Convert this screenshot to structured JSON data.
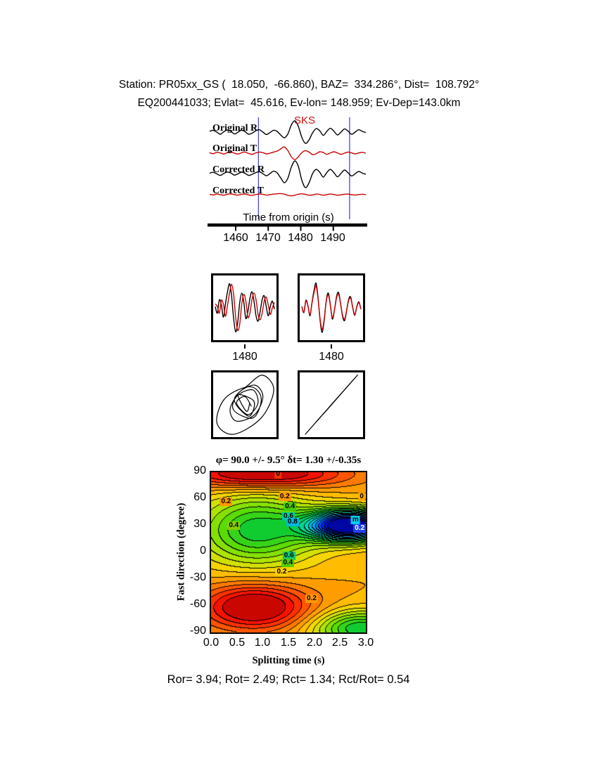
{
  "header": {
    "line1": "Station: PR05xx_GS (  18.050,  -66.860), BAZ=  334.286°, Dist=  108.792°",
    "line2": "EQ200441033; Evlat=  45.616, Ev-lon= 148.959; Ev-Dep=143.0km"
  },
  "footer": {
    "stats": "Ror= 3.94; Rot= 2.49; Rct= 1.34; Rct/Rot= 0.54"
  },
  "chart_data": [
    {
      "id": "waveform-traces",
      "type": "line",
      "xlabel": "Time from origin (s)",
      "x_range": [
        1452,
        1500
      ],
      "xticks": [
        1460,
        1470,
        1480,
        1490
      ],
      "window": [
        1467,
        1495
      ],
      "window_color": "#4a4ad0",
      "phase_label": "SKS",
      "phase_time": 1478,
      "series": [
        {
          "name": "Original R",
          "color": "#000000",
          "values": [
            0.1,
            0.18,
            0.05,
            -0.1,
            0.08,
            0.2,
            0.1,
            -0.08,
            0.05,
            0.18,
            0.08,
            -0.1,
            -0.02,
            0.15,
            0.22,
            0.05,
            -0.12,
            0.02,
            0.18,
            0.1,
            -0.15,
            -0.35,
            -0.1,
            0.55,
            0.85,
            0.45,
            -0.35,
            -0.75,
            -0.5,
            0.0,
            0.3,
            0.15,
            -0.18,
            0.1,
            0.32,
            0.12,
            -0.15,
            0.05,
            0.28,
            0.12,
            -0.1,
            0.05,
            0.22,
            0.1,
            0.02
          ]
        },
        {
          "name": "Original T",
          "color": "#cc0000",
          "values": [
            0.04,
            -0.04,
            0.06,
            0.02,
            -0.06,
            0.04,
            0.08,
            0.0,
            -0.06,
            0.03,
            0.08,
            -0.02,
            -0.08,
            0.02,
            0.08,
            0.04,
            -0.05,
            0.0,
            0.08,
            0.15,
            0.3,
            0.45,
            0.2,
            -0.25,
            -0.45,
            -0.25,
            0.05,
            0.18,
            0.08,
            -0.1,
            -0.04,
            0.1,
            0.05,
            -0.08,
            0.02,
            0.1,
            0.02,
            -0.08,
            0.0,
            0.08,
            0.02,
            -0.05,
            0.02,
            0.06,
            0.0
          ]
        },
        {
          "name": "Corrected R",
          "color": "#000000",
          "values": [
            0.08,
            0.14,
            0.03,
            -0.08,
            0.06,
            0.16,
            0.08,
            -0.06,
            0.04,
            0.15,
            0.06,
            -0.08,
            0.0,
            0.12,
            0.18,
            0.04,
            -0.1,
            0.05,
            0.22,
            0.1,
            -0.25,
            -0.6,
            -0.3,
            0.5,
            0.95,
            0.55,
            -0.45,
            -0.95,
            -0.6,
            0.05,
            0.35,
            0.15,
            -0.2,
            0.12,
            0.35,
            0.12,
            -0.18,
            0.06,
            0.3,
            0.1,
            -0.12,
            0.04,
            0.2,
            0.08,
            0.0
          ]
        },
        {
          "name": "Corrected T",
          "color": "#cc0000",
          "values": [
            0.03,
            -0.02,
            0.04,
            0.0,
            -0.04,
            0.03,
            0.05,
            0.0,
            -0.03,
            0.02,
            0.05,
            -0.02,
            -0.05,
            0.01,
            0.04,
            0.02,
            -0.03,
            0.0,
            0.04,
            0.06,
            0.08,
            0.04,
            -0.05,
            -0.08,
            -0.04,
            0.03,
            0.06,
            0.02,
            -0.04,
            -0.02,
            0.04,
            0.02,
            -0.04,
            0.0,
            0.04,
            0.01,
            -0.04,
            -0.01,
            0.03,
            0.04,
            0.0,
            -0.03,
            0.01,
            0.03,
            0.0
          ]
        }
      ]
    },
    {
      "id": "windowed-pair",
      "type": "line",
      "panels": [
        {
          "tick_label": "1480",
          "series": [
            {
              "color": "#000000",
              "values": [
                0.05,
                -0.2,
                0.3,
                0.1,
                -0.35,
                0.15,
                0.6,
                0.9,
                0.45,
                -0.4,
                -0.9,
                -0.55,
                0.2,
                0.55,
                0.2,
                -0.4,
                -0.15,
                0.35,
                0.6,
                0.25,
                -0.3,
                -0.5,
                -0.15,
                0.3,
                0.45,
                0.05,
                -0.3,
                0.05,
                0.25,
                -0.05
              ]
            },
            {
              "color": "#cc0000",
              "values": [
                0.15,
                0.05,
                -0.2,
                0.28,
                0.12,
                -0.32,
                0.1,
                0.55,
                0.88,
                0.5,
                -0.35,
                -0.85,
                -0.6,
                0.15,
                0.5,
                0.25,
                -0.35,
                -0.2,
                0.3,
                0.55,
                0.3,
                -0.25,
                -0.45,
                -0.2,
                0.25,
                0.4,
                0.1,
                -0.25,
                0.0,
                0.2
              ]
            }
          ]
        },
        {
          "tick_label": "1480",
          "series": [
            {
              "color": "#000000",
              "values": [
                0.05,
                -0.18,
                0.28,
                0.08,
                -0.3,
                0.2,
                0.65,
                0.92,
                0.35,
                -0.5,
                -0.92,
                -0.45,
                0.28,
                0.55,
                0.1,
                -0.42,
                -0.1,
                0.4,
                0.58,
                0.18,
                -0.32,
                -0.48,
                -0.1,
                0.32,
                0.4,
                0.0,
                -0.28,
                0.05,
                0.22,
                -0.05
              ]
            },
            {
              "color": "#cc0000",
              "values": [
                0.04,
                -0.16,
                0.25,
                0.07,
                -0.26,
                0.18,
                0.57,
                0.81,
                0.31,
                -0.44,
                -0.81,
                -0.4,
                0.25,
                0.48,
                0.09,
                -0.37,
                -0.09,
                0.35,
                0.51,
                0.16,
                -0.28,
                -0.42,
                -0.09,
                0.28,
                0.35,
                0.0,
                -0.25,
                0.04,
                0.19,
                -0.04
              ]
            }
          ]
        }
      ]
    },
    {
      "id": "particle-motion",
      "type": "scatter",
      "panels": [
        {
          "source": "windowed-pair.panels.0",
          "x": "T component",
          "y": "R component"
        },
        {
          "source": "windowed-pair.panels.1",
          "x": "T component",
          "y": "R component"
        }
      ]
    },
    {
      "id": "misfit-contour",
      "type": "heatmap",
      "title": "φ= 90.0 +/- 9.5° δt= 1.30 +/-0.35s",
      "xlabel": "Splitting time (s)",
      "ylabel": "Fast direction (degree)",
      "xlim": [
        0,
        3
      ],
      "ylim": [
        -90,
        90
      ],
      "xticks": [
        "0.0",
        "0.5",
        "1.0",
        "1.5",
        "2.0",
        "2.5",
        "3.0"
      ],
      "yticks": [
        "90",
        "60",
        "30",
        "0",
        "-30",
        "-60",
        "-90"
      ],
      "best_fit": {
        "phi_deg": 90.0,
        "phi_err_deg": 9.5,
        "dt_s": 1.3,
        "dt_err_s": 0.35
      },
      "n_levels": 24,
      "field_model": {
        "base": 0.75,
        "gaussians": [
          {
            "x": 1.0,
            "y": 88,
            "sx": 1.6,
            "sy": 16,
            "a": 0.3
          },
          {
            "x": 0.85,
            "y": -62,
            "sx": 1.05,
            "sy": 26,
            "a": 0.3
          },
          {
            "x": 0.9,
            "y": 25,
            "sx": 1.15,
            "sy": 40,
            "a": -0.32
          },
          {
            "x": 2.7,
            "y": 30,
            "sx": 0.8,
            "sy": 17,
            "a": -0.85
          },
          {
            "x": 2.9,
            "y": -86,
            "sx": 0.9,
            "sy": 20,
            "a": -0.33
          }
        ]
      },
      "colormap": [
        [
          0.0,
          0,
          0,
          140
        ],
        [
          0.1,
          0,
          30,
          255
        ],
        [
          0.22,
          0,
          160,
          255
        ],
        [
          0.32,
          0,
          220,
          180
        ],
        [
          0.42,
          0,
          200,
          60
        ],
        [
          0.52,
          90,
          220,
          0
        ],
        [
          0.62,
          190,
          230,
          0
        ],
        [
          0.7,
          255,
          210,
          0
        ],
        [
          0.78,
          255,
          150,
          0
        ],
        [
          0.86,
          255,
          80,
          0
        ],
        [
          0.93,
          255,
          20,
          0
        ],
        [
          1.0,
          180,
          0,
          0
        ]
      ],
      "contour_labels": [
        {
          "text": "0",
          "x": 1.3,
          "y": 88,
          "bg": "#ee3300",
          "fg": "#000000"
        },
        {
          "text": "0.2",
          "x": 1.43,
          "y": 62,
          "bg": "#ff9900",
          "fg": "#000000"
        },
        {
          "text": "0",
          "x": 2.92,
          "y": 62,
          "bg": "#ffaa00",
          "fg": "#000000"
        },
        {
          "text": "0.4",
          "x": 1.53,
          "y": 51,
          "bg": "#44cc00",
          "fg": "#000000"
        },
        {
          "text": "0.6",
          "x": 1.5,
          "y": 40,
          "bg": "#00cc99",
          "fg": "#000000"
        },
        {
          "text": "0.8",
          "x": 1.58,
          "y": 34,
          "bg": "#00bbdd",
          "fg": "#000000"
        },
        {
          "text": "m",
          "x": 2.8,
          "y": 36,
          "bg": "#00ccee",
          "fg": "#000000"
        },
        {
          "text": "0.2",
          "x": 2.88,
          "y": 27,
          "bg": "#2244ee",
          "fg": "#ffffff"
        },
        {
          "text": "0.6",
          "x": 1.51,
          "y": -4,
          "bg": "#00cc77",
          "fg": "#000000"
        },
        {
          "text": "0.4",
          "x": 1.49,
          "y": -12,
          "bg": "#55cc00",
          "fg": "#000000"
        },
        {
          "text": "0.2",
          "x": 1.37,
          "y": -22,
          "bg": "#ffcc00",
          "fg": "#000000"
        },
        {
          "text": "0.2",
          "x": 0.29,
          "y": 57,
          "bg": "#ff9900",
          "fg": "#000000"
        },
        {
          "text": "0.4",
          "x": 0.44,
          "y": 30,
          "bg": "#88cc00",
          "fg": "#000000"
        },
        {
          "text": "0.2",
          "x": 1.95,
          "y": -52,
          "bg": "#ff9900",
          "fg": "#000000"
        }
      ]
    }
  ]
}
